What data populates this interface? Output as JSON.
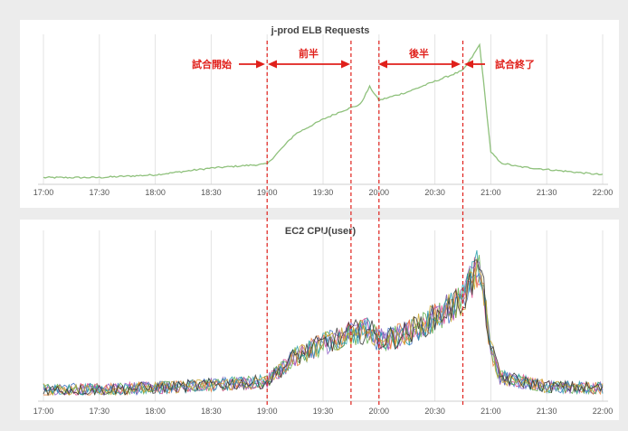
{
  "chart_data": [
    {
      "type": "line",
      "title": "j-prod ELB Requests",
      "x_ticks": [
        "17:00",
        "17:30",
        "18:00",
        "18:30",
        "19:00",
        "19:30",
        "20:00",
        "20:30",
        "21:00",
        "21:30",
        "22:00"
      ],
      "xlim": [
        "17:00",
        "22:00"
      ],
      "ylim": [
        0,
        100
      ],
      "grid": "vertical",
      "series": [
        {
          "color": "#8fc17c",
          "x": [
            "17:00",
            "17:30",
            "18:00",
            "18:30",
            "19:00",
            "19:15",
            "19:30",
            "19:40",
            "19:50",
            "19:55",
            "20:00",
            "20:15",
            "20:30",
            "20:45",
            "20:50",
            "20:54",
            "21:00",
            "21:05",
            "21:15",
            "21:30",
            "22:00"
          ],
          "values": [
            1,
            1,
            3,
            8,
            11,
            33,
            44,
            50,
            55,
            68,
            58,
            64,
            72,
            80,
            90,
            99,
            20,
            12,
            9,
            7,
            3
          ]
        }
      ]
    },
    {
      "type": "line",
      "title": "EC2 CPU(user)",
      "x_ticks": [
        "17:00",
        "17:30",
        "18:00",
        "18:30",
        "19:00",
        "19:30",
        "20:00",
        "20:30",
        "21:00",
        "21:30",
        "22:00"
      ],
      "xlim": [
        "17:00",
        "22:00"
      ],
      "ylim": [
        0,
        100
      ],
      "grid": "vertical",
      "envelope": {
        "x": [
          "17:00",
          "17:30",
          "18:00",
          "18:30",
          "19:00",
          "19:15",
          "19:30",
          "19:45",
          "19:55",
          "20:00",
          "20:15",
          "20:30",
          "20:45",
          "20:50",
          "20:54",
          "21:00",
          "21:05",
          "21:30",
          "22:00"
        ],
        "values": [
          4,
          4,
          5,
          7,
          9,
          25,
          33,
          40,
          42,
          35,
          40,
          50,
          62,
          74,
          85,
          30,
          12,
          6,
          5
        ]
      },
      "series": [
        {
          "color": "#e2478d"
        },
        {
          "color": "#3c6fc4"
        },
        {
          "color": "#e8772e"
        },
        {
          "color": "#5aaa46"
        },
        {
          "color": "#8e5cc4"
        },
        {
          "color": "#1e9aa8"
        },
        {
          "color": "#c8a52a"
        },
        {
          "color": "#333333"
        }
      ]
    }
  ],
  "annotations": {
    "phases": [
      {
        "label": "試合開始",
        "time": "19:00"
      },
      {
        "label": "前半",
        "start": "19:00",
        "end": "19:45"
      },
      {
        "label": "後半",
        "start": "20:00",
        "end": "20:45"
      },
      {
        "label": "試合終了",
        "time": "20:45"
      }
    ],
    "boundaries": [
      "19:00",
      "19:45",
      "20:00",
      "20:45"
    ]
  }
}
